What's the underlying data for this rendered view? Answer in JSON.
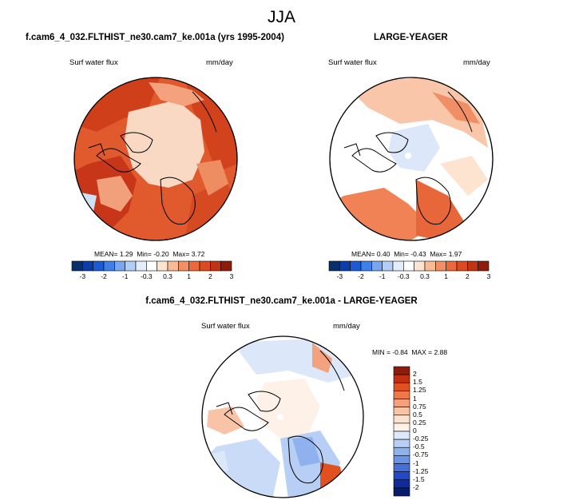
{
  "main_title": "JJA",
  "panels": [
    {
      "title": "f.cam6_4_032.FLTHIST_ne30.cam7_ke.001a (yrs 1995-2004)",
      "variable": "Surf water flux",
      "units": "mm/day",
      "stats": {
        "mean_label": "MEAN=",
        "mean": "1.29",
        "min_label": "Min=",
        "min": "-0.20",
        "max_label": "Max=",
        "max": "3.72"
      },
      "colorbar_labels": [
        "-3",
        "-2",
        "-1",
        "-0.3",
        "0.3",
        "1",
        "2",
        "3"
      ]
    },
    {
      "title": "LARGE-YEAGER",
      "variable": "Surf water flux",
      "units": "mm/day",
      "stats": {
        "mean_label": "MEAN=",
        "mean": "0.40",
        "min_label": "Min=",
        "min": "-0.43",
        "max_label": "Max=",
        "max": "1.97"
      },
      "colorbar_labels": [
        "-3",
        "-2",
        "-1",
        "-0.3",
        "0.3",
        "1",
        "2",
        "3"
      ]
    },
    {
      "title": "f.cam6_4_032.FLTHIST_ne30.cam7_ke.001a - LARGE-YEAGER",
      "variable": "Surf water flux",
      "units": "mm/day",
      "minmax": {
        "min_label": "MIN =",
        "min": "-0.84",
        "max_label": "MAX =",
        "max": "2.88"
      },
      "colorbar_labels": [
        "2",
        "1.5",
        "1.25",
        "1",
        "0.75",
        "0.5",
        "0.25",
        "0",
        "-0.25",
        "-0.5",
        "-0.75",
        "-1",
        "-1.25",
        "-1.5",
        "-2"
      ]
    }
  ],
  "colors": {
    "abs_scale": [
      "#08306b",
      "#0a3ea8",
      "#1c5bd6",
      "#3f7fe8",
      "#79a6f0",
      "#b2cdf6",
      "#e3edfb",
      "#ffffff",
      "#fde4d1",
      "#f9bb96",
      "#f39063",
      "#eb6a3d",
      "#de4a1f",
      "#c23314",
      "#8e1c0b"
    ],
    "diff_scale": [
      "#8e1c0b",
      "#c42f12",
      "#e1501f",
      "#ef7846",
      "#f5a07a",
      "#f8c3a6",
      "#fbe1cf",
      "#fdf1e8",
      "#dde9fa",
      "#b7cff5",
      "#8fb1ee",
      "#6b93e6",
      "#466fda",
      "#2449c4",
      "#0f2a9a",
      "#061a6e"
    ]
  }
}
